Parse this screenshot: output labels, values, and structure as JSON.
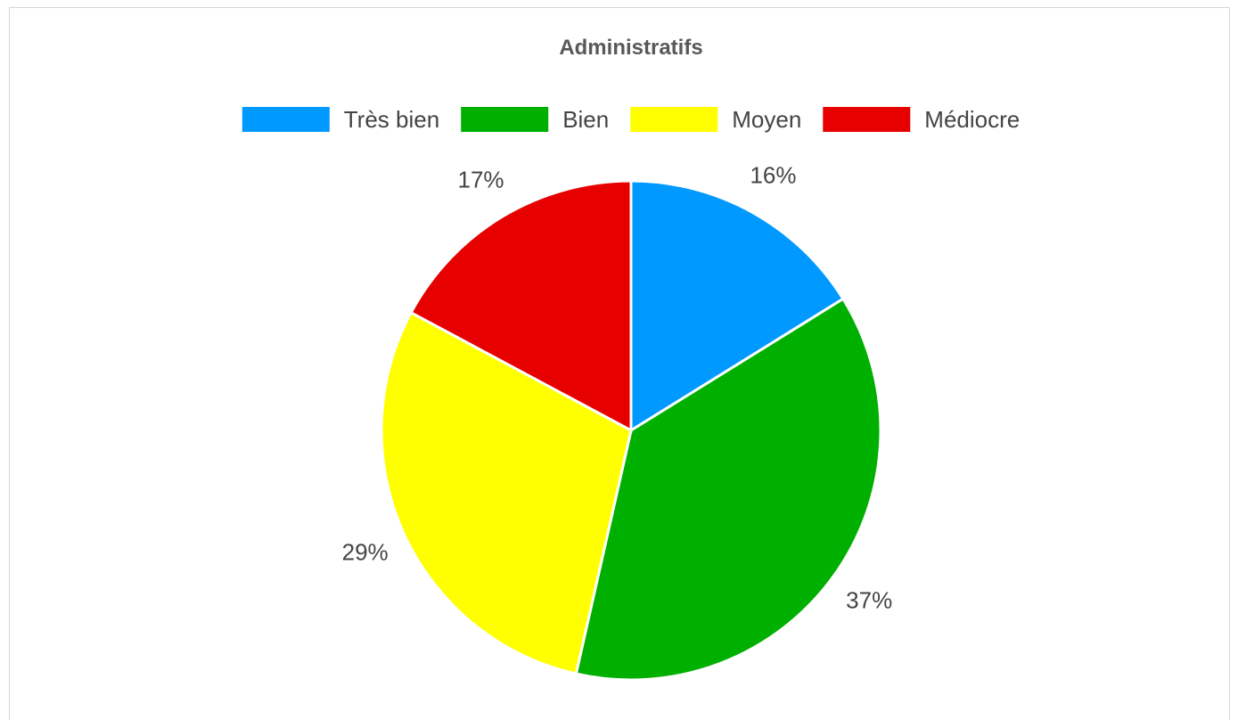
{
  "chart_data": {
    "type": "pie",
    "title": "Administratifs",
    "legend_position": "top",
    "slices": [
      {
        "label": "Très bien",
        "value": 16,
        "display": "16%",
        "color": "#0099ff"
      },
      {
        "label": "Bien",
        "value": 37,
        "display": "37%",
        "color": "#00b000"
      },
      {
        "label": "Moyen",
        "value": 29,
        "display": "29%",
        "color": "#ffff00"
      },
      {
        "label": "Médiocre",
        "value": 17,
        "display": "17%",
        "color": "#e60000"
      }
    ]
  }
}
